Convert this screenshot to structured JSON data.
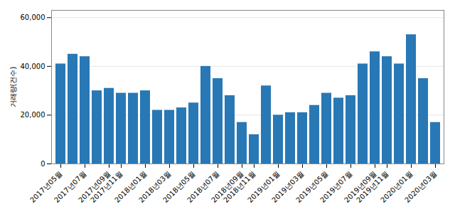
{
  "chart_data": {
    "type": "bar",
    "categories": [
      "2017년05월",
      null,
      "2017년07월",
      null,
      "2017년09월",
      "2017년11월",
      null,
      "2018년01월",
      null,
      "2018년03월",
      null,
      "2018년05월",
      null,
      "2018년07월",
      null,
      "2018년09월",
      "2018년11월",
      null,
      "2019년01월",
      null,
      "2019년03월",
      null,
      "2019년05월",
      null,
      "2019년07월",
      null,
      "2019년09월",
      "2019년11월",
      null,
      "2020년01월",
      null,
      "2020년03월"
    ],
    "values": [
      41000,
      45000,
      44000,
      30000,
      31000,
      29000,
      29000,
      30000,
      22000,
      22000,
      23000,
      25000,
      40000,
      35000,
      28000,
      17000,
      12000,
      32000,
      20000,
      21000,
      21000,
      24000,
      29000,
      27000,
      28000,
      41000,
      46000,
      44000,
      41000,
      53000,
      35000,
      17000
    ],
    "color": "#2878b5",
    "ylabel": "거래량(건수)",
    "ylim": [
      0,
      63000
    ],
    "yticks": [
      0,
      {
        "value": 20000,
        "label": "20,000"
      },
      {
        "value": 40000,
        "label": "40,000"
      },
      {
        "value": 60000,
        "label": "60,000"
      }
    ],
    "grid": true
  }
}
